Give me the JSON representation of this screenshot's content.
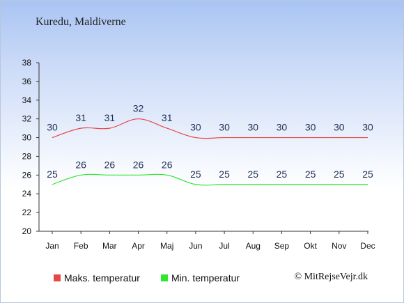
{
  "title": "Kuredu, Maldiverne",
  "copyright": "© MitRejseVejr.dk",
  "chart_data": {
    "type": "line",
    "categories": [
      "Jan",
      "Feb",
      "Mar",
      "Apr",
      "Maj",
      "Jun",
      "Jul",
      "Aug",
      "Sep",
      "Okt",
      "Nov",
      "Dec"
    ],
    "ylim": [
      20,
      38
    ],
    "yticks": [
      20,
      22,
      24,
      26,
      28,
      30,
      32,
      34,
      36,
      38
    ],
    "grid": false,
    "legend_position": "bottom",
    "series": [
      {
        "name": "Maks. temperatur",
        "color": "#e84646",
        "values": [
          30,
          31,
          31,
          32,
          31,
          30,
          30,
          30,
          30,
          30,
          30,
          30
        ]
      },
      {
        "name": "Min. temperatur",
        "color": "#2ee82e",
        "values": [
          25,
          26,
          26,
          26,
          26,
          25,
          25,
          25,
          25,
          25,
          25,
          25
        ]
      }
    ]
  }
}
